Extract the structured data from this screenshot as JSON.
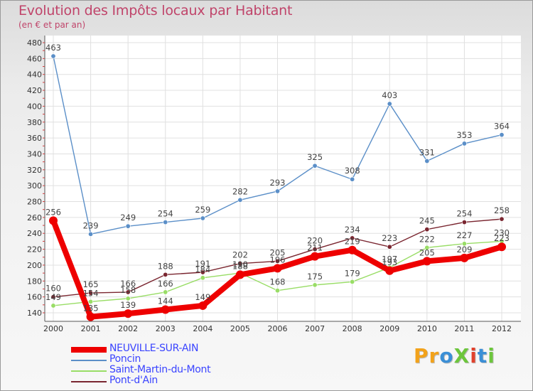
{
  "title": "Evolution des Impôts locaux par Habitant",
  "subtitle": "(en € et par an)",
  "logo": {
    "text": "ProXiti",
    "colors": [
      "#f2a21b",
      "#f2a21b",
      "#3b8fd6",
      "#6cc63c",
      "#e0412c",
      "#3b8fd6",
      "#6cc63c"
    ]
  },
  "chart_data": {
    "type": "line",
    "x": [
      "2000",
      "2001",
      "2002",
      "2003",
      "2004",
      "2005",
      "2006",
      "2007",
      "2008",
      "2009",
      "2010",
      "2011",
      "2012"
    ],
    "yticks": [
      140,
      160,
      180,
      200,
      220,
      240,
      260,
      280,
      300,
      320,
      340,
      360,
      380,
      400,
      420,
      440,
      460,
      480
    ],
    "ylim": [
      130,
      485
    ],
    "grid": true,
    "legend_position": "bottom-left",
    "series": [
      {
        "name": "NEUVILLE-SUR-AIN",
        "color": "#ee0000",
        "values": [
          256,
          135,
          139,
          144,
          149,
          188,
          196,
          211,
          219,
          193,
          205,
          209,
          223
        ],
        "labels": [
          "256",
          "135",
          "139",
          "144",
          "149",
          "188",
          "196",
          "211",
          "219",
          "193",
          "205",
          "209",
          "223"
        ]
      },
      {
        "name": "Poncin",
        "color": "#5b8fc8",
        "values": [
          463,
          239,
          249,
          254,
          259,
          282,
          293,
          325,
          308,
          403,
          331,
          353,
          364
        ],
        "labels": [
          "463",
          "239",
          "249",
          "254",
          "259",
          "282",
          "293",
          "325",
          "308",
          "403",
          "331",
          "353",
          "364"
        ]
      },
      {
        "name": "Saint-Martin-du-Mont",
        "color": "#99dd66",
        "values": [
          149,
          154,
          158,
          166,
          184,
          190,
          168,
          175,
          179,
          197,
          222,
          227,
          230
        ],
        "labels": [
          "149",
          "154",
          "158",
          "166",
          "184",
          "190",
          "168",
          "175",
          "179",
          "197",
          "222",
          "227",
          "230"
        ]
      },
      {
        "name": "Pont-d'Ain",
        "color": "#7a2630",
        "values": [
          160,
          165,
          166,
          188,
          191,
          202,
          205,
          220,
          234,
          223,
          245,
          254,
          258
        ],
        "labels": [
          "160",
          "165",
          "166",
          "188",
          "191",
          "202",
          "205",
          "220",
          "234",
          "223",
          "245",
          "254",
          "258"
        ]
      }
    ]
  }
}
